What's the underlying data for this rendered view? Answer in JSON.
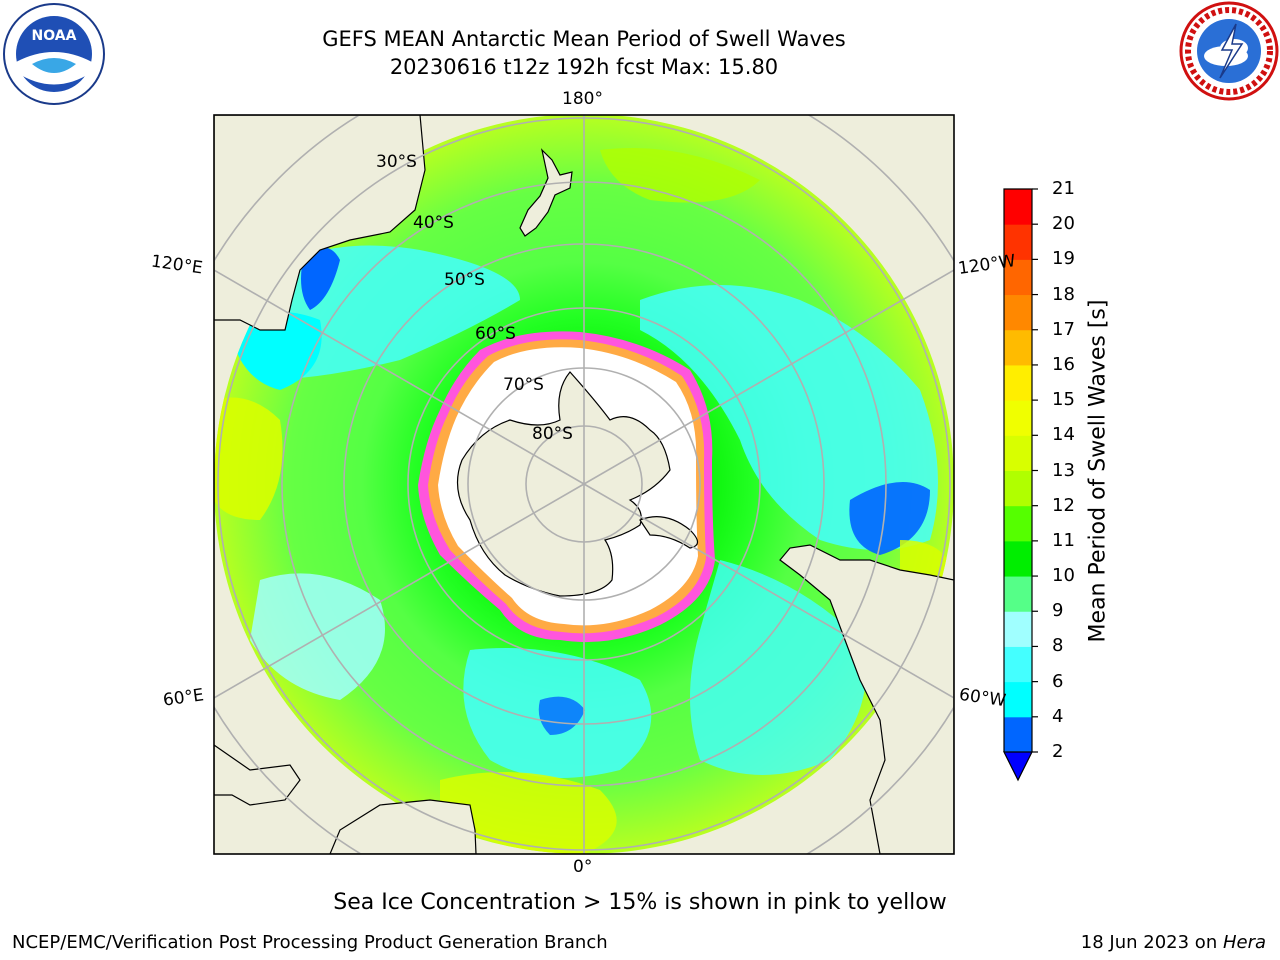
{
  "header": {
    "title_line1": "GEFS MEAN Antarctic Mean Period of Swell Waves",
    "title_line2": "20230616 t12z 192h fcst   Max: 15.80"
  },
  "logos": {
    "left": "noaa-logo",
    "right": "national-weather-service-logo"
  },
  "map": {
    "projection": "south-polar-stereographic",
    "longitude_labels": {
      "top": "180°",
      "bottom": "0°",
      "upper_left": "120°E",
      "upper_right": "120°W",
      "lower_left": "60°E",
      "lower_right": "60°W"
    },
    "latitude_labels": [
      "30°S",
      "40°S",
      "50°S",
      "60°S",
      "70°S",
      "80°S"
    ],
    "note": "Sea Ice Concentration > 15% is shown in pink to yellow",
    "colors": {
      "land": "#eeeedc",
      "sea_ice_interior": "#ffffff",
      "grid": "#b0b0b0"
    }
  },
  "colorbar": {
    "label": "Mean Period of Swell Waves [s]",
    "ticks": [
      "2",
      "4",
      "6",
      "8",
      "9",
      "10",
      "11",
      "12",
      "13",
      "14",
      "15",
      "16",
      "17",
      "18",
      "19",
      "20",
      "21"
    ],
    "colors": [
      "#0066ff",
      "#00ffff",
      "#44ffff",
      "#a0ffff",
      "#55ff88",
      "#00ee00",
      "#55ff00",
      "#b0ff00",
      "#d8ff00",
      "#f0ff00",
      "#ffee00",
      "#ffbb00",
      "#ff8800",
      "#ff6600",
      "#ff3300",
      "#ff0000"
    ],
    "under_color": "#0000ff"
  },
  "footer": {
    "left": "NCEP/EMC/Verification Post Processing Product Generation Branch",
    "right_date": "18 Jun 2023 on ",
    "right_host": "Hera"
  }
}
